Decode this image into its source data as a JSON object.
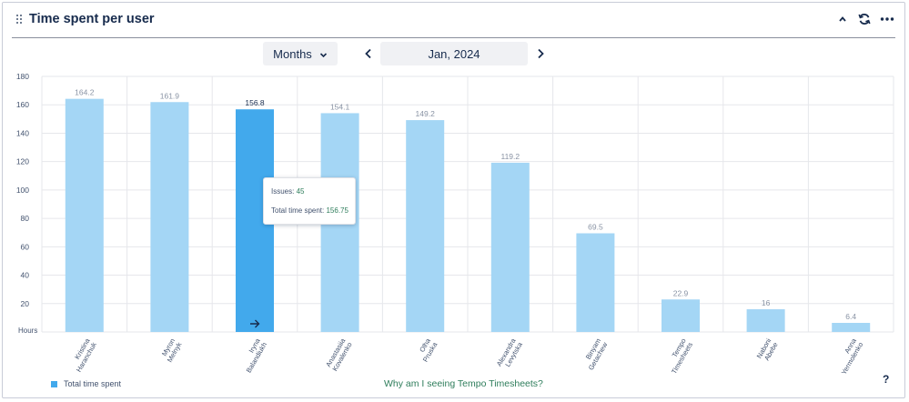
{
  "header": {
    "title": "Time spent per user",
    "icons": [
      "drag-handle-icon",
      "chevron-up-icon",
      "refresh-icon",
      "more-icon"
    ]
  },
  "controls": {
    "period": "Months",
    "date": "Jan, 2024",
    "icons": [
      "chevron-down-icon",
      "chevron-left-icon",
      "chevron-right-icon"
    ]
  },
  "tooltip": {
    "issues_label": "Issues:",
    "issues_value": "45",
    "total_label": "Total time spent:",
    "total_value": "156.75"
  },
  "footer": {
    "legend_label": "Total time spent",
    "help_link": "Why am I seeing Tempo Timesheets?",
    "help_icon": "?"
  },
  "colors": {
    "bar": "#a4d6f5",
    "bar_active": "#42a9ec",
    "grid": "#e6e7eb",
    "accent_text": "#2e7d5b"
  },
  "chart_data": {
    "type": "bar",
    "ylabel": "Hours",
    "yticks": [
      20,
      40,
      60,
      80,
      100,
      120,
      140,
      160,
      180
    ],
    "ylim": [
      0,
      180
    ],
    "grid": true,
    "legend": "bottom-left",
    "active_index": 2,
    "categories": [
      [
        "Kristina",
        "Haranchuk"
      ],
      [
        "Myron",
        "Melnyk"
      ],
      [
        "Iryna",
        "Balandiukh"
      ],
      [
        "Anastasiia",
        "Kovalenko"
      ],
      [
        "Olha",
        "Pruska"
      ],
      [
        "Alexandra",
        "Levytska"
      ],
      [
        "Binyam",
        "Getachew"
      ],
      [
        "Tempo",
        "Timesheets"
      ],
      [
        "Naboni",
        "Abebe"
      ],
      [
        "Anna",
        "Yermolenko"
      ]
    ],
    "series": [
      {
        "name": "Total time spent",
        "values": [
          164.2,
          161.9,
          156.8,
          154.1,
          149.2,
          119.2,
          69.5,
          22.9,
          16,
          6.4
        ]
      }
    ]
  }
}
